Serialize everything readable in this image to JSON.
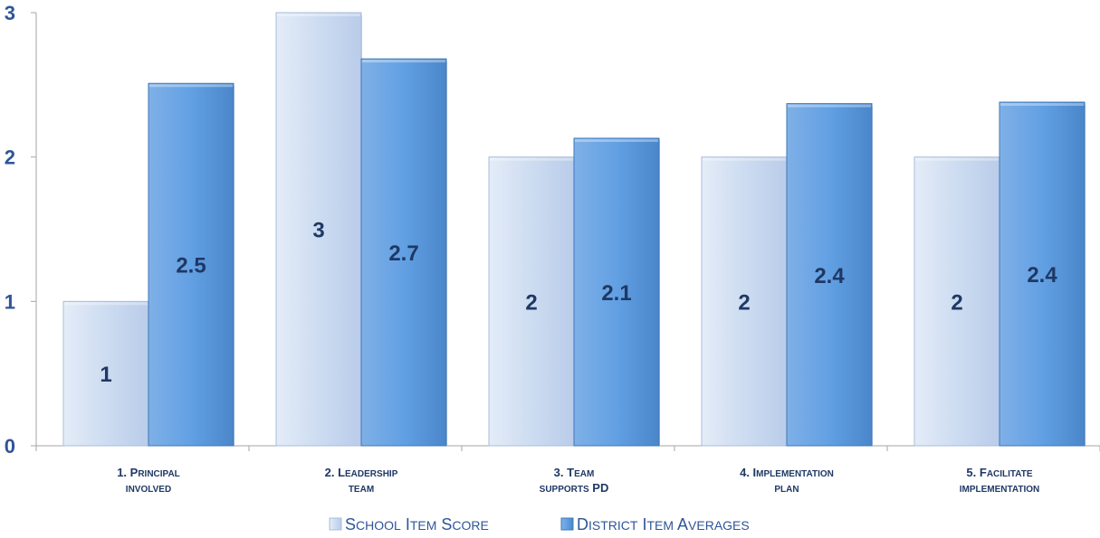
{
  "chart_data": {
    "type": "bar",
    "categories": [
      [
        "1. Principal",
        "involved"
      ],
      [
        "2. Leadership",
        "team"
      ],
      [
        "3. Team",
        "supports PD"
      ],
      [
        "4. Implementation",
        "plan"
      ],
      [
        "5. Facilitate",
        "implementation"
      ]
    ],
    "series": [
      {
        "name": "School Item Score",
        "values": [
          1,
          3,
          2,
          2,
          2
        ],
        "labels": [
          "1",
          "3",
          "2",
          "2",
          "2"
        ],
        "color": "#c9daf3"
      },
      {
        "name": "District Item Averages",
        "values": [
          2.51,
          2.68,
          2.13,
          2.37,
          2.38
        ],
        "labels": [
          "2.5",
          "2.7",
          "2.1",
          "2.4",
          "2.4"
        ],
        "color": "#5b9bd5"
      }
    ],
    "yticks": [
      "0",
      "1",
      "2",
      "3"
    ],
    "ylim": [
      0,
      3
    ],
    "grid": false,
    "legend_position": "bottom",
    "colors": {
      "axis": "#a6a6a6",
      "tick_text": "#2f5597",
      "value_text": "#1f3864",
      "legend_text": "#2f5597"
    }
  }
}
